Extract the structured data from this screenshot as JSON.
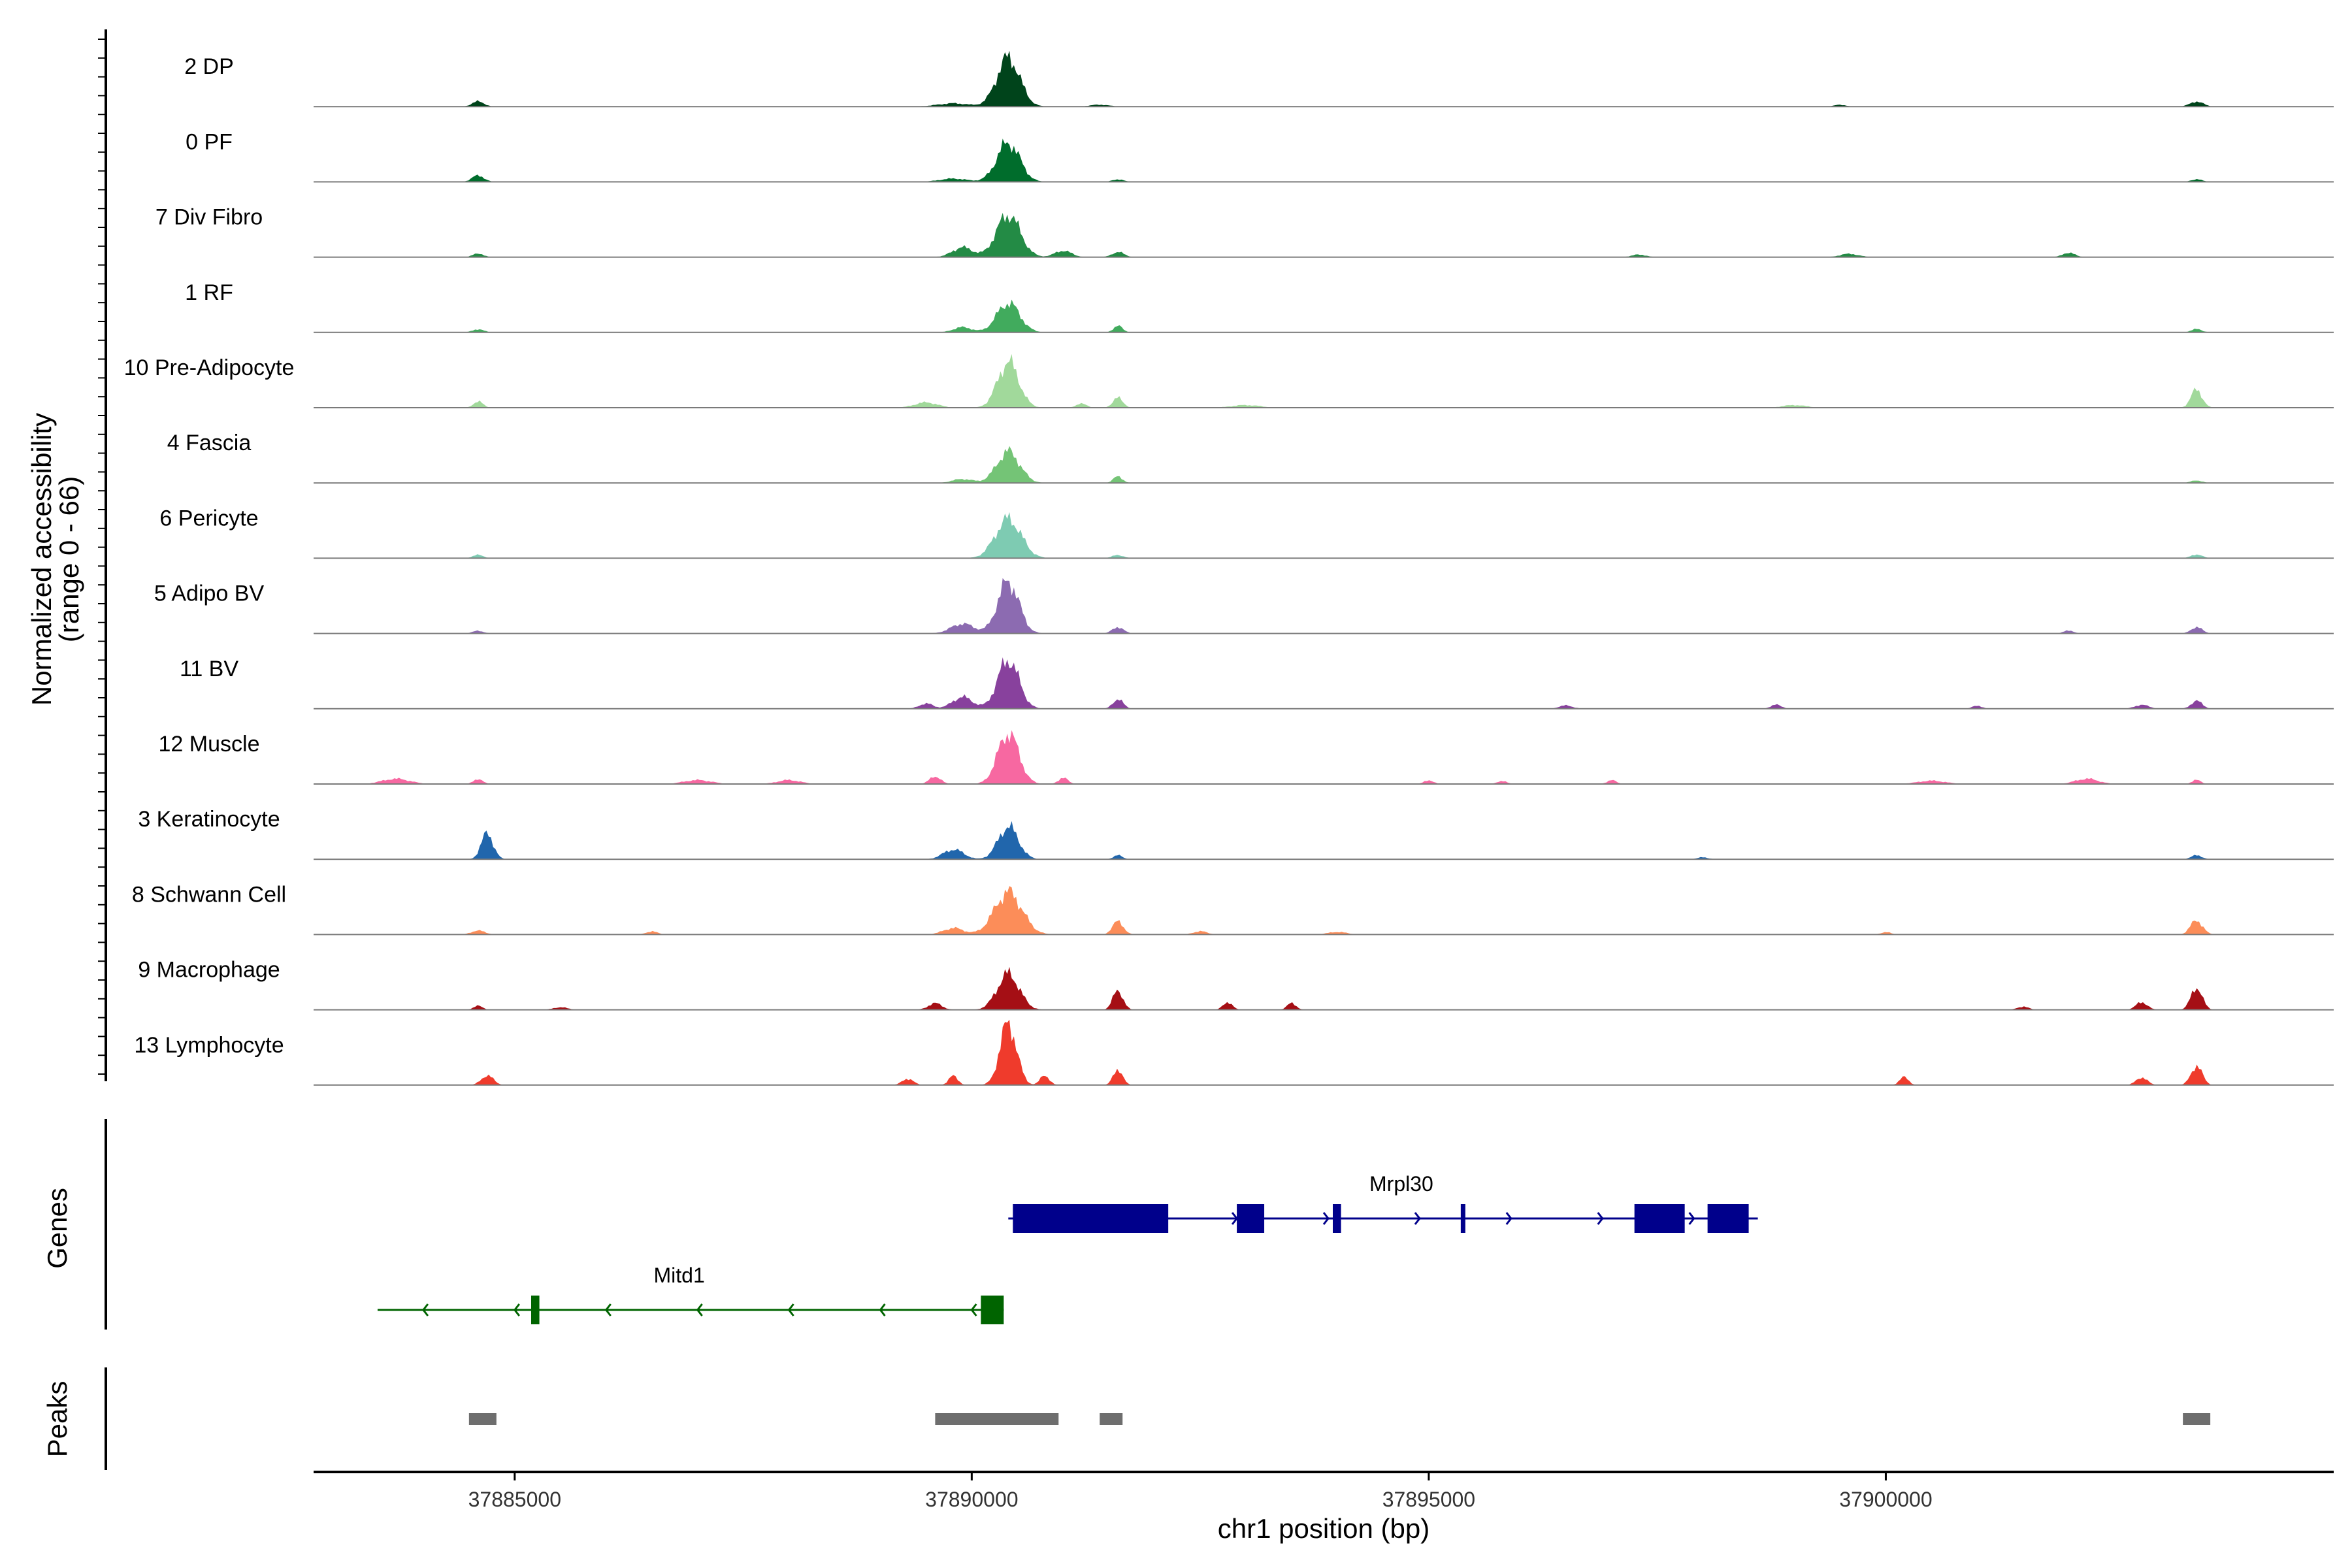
{
  "chart_data": {
    "type": "area",
    "x_axis": {
      "label": "chr1 position (bp)",
      "range": [
        37882800,
        37904900
      ],
      "ticks": [
        {
          "value": 37885000,
          "label": "37885000"
        },
        {
          "value": 37890000,
          "label": "37890000"
        },
        {
          "value": 37895000,
          "label": "37895000"
        },
        {
          "value": 37900000,
          "label": "37900000"
        }
      ]
    },
    "y_axis": {
      "label_line1": "Normalized accessibility",
      "label_line2": "(range 0 - 66)",
      "range": [
        0,
        66
      ]
    },
    "genes_label": "Genes",
    "peaks_label": "Peaks",
    "tracks": [
      {
        "name": "2 DP",
        "color": "#00441b",
        "peaks": [
          [
            37890400,
            0.75,
            250
          ],
          [
            37884600,
            0.08,
            130
          ],
          [
            37903400,
            0.08,
            140
          ],
          [
            37889800,
            0.05,
            350
          ],
          [
            37891400,
            0.03,
            200
          ],
          [
            37899500,
            0.03,
            120
          ]
        ]
      },
      {
        "name": "0 PF",
        "color": "#006d2c",
        "peaks": [
          [
            37890400,
            0.6,
            250
          ],
          [
            37884600,
            0.1,
            130
          ],
          [
            37889800,
            0.05,
            300
          ],
          [
            37891600,
            0.04,
            120
          ],
          [
            37903400,
            0.04,
            120
          ]
        ]
      },
      {
        "name": "7 Div Fibro",
        "color": "#238b45",
        "peaks": [
          [
            37890400,
            0.65,
            260
          ],
          [
            37889900,
            0.15,
            220
          ],
          [
            37891000,
            0.1,
            180
          ],
          [
            37891600,
            0.08,
            130
          ],
          [
            37884600,
            0.06,
            110
          ],
          [
            37899600,
            0.05,
            200
          ],
          [
            37897300,
            0.04,
            150
          ],
          [
            37902000,
            0.07,
            130
          ]
        ]
      },
      {
        "name": "1 RF",
        "color": "#41ab5d",
        "peaks": [
          [
            37890400,
            0.45,
            250
          ],
          [
            37891600,
            0.1,
            100
          ],
          [
            37884600,
            0.05,
            120
          ],
          [
            37903400,
            0.05,
            120
          ],
          [
            37889900,
            0.08,
            200
          ]
        ]
      },
      {
        "name": "10 Pre-Adipocyte",
        "color": "#a1d99b",
        "peaks": [
          [
            37890400,
            0.7,
            230
          ],
          [
            37891600,
            0.15,
            110
          ],
          [
            37903400,
            0.28,
            120
          ],
          [
            37884600,
            0.1,
            100
          ],
          [
            37889500,
            0.08,
            250
          ],
          [
            37891200,
            0.06,
            120
          ],
          [
            37893000,
            0.04,
            300
          ],
          [
            37899000,
            0.04,
            250
          ]
        ]
      },
      {
        "name": "4 Fascia",
        "color": "#74c476",
        "peaks": [
          [
            37890400,
            0.48,
            250
          ],
          [
            37891600,
            0.1,
            100
          ],
          [
            37889900,
            0.06,
            220
          ],
          [
            37903400,
            0.04,
            120
          ]
        ]
      },
      {
        "name": "6 Pericyte",
        "color": "#7ecbb2",
        "peaks": [
          [
            37890400,
            0.6,
            280
          ],
          [
            37884600,
            0.05,
            120
          ],
          [
            37903400,
            0.06,
            120
          ],
          [
            37891600,
            0.05,
            120
          ]
        ]
      },
      {
        "name": "5 Adipo BV",
        "color": "#8c6bb1",
        "peaks": [
          [
            37890400,
            0.8,
            230
          ],
          [
            37889900,
            0.15,
            250
          ],
          [
            37891600,
            0.1,
            120
          ],
          [
            37903400,
            0.1,
            120
          ],
          [
            37884600,
            0.04,
            120
          ],
          [
            37902000,
            0.05,
            100
          ]
        ]
      },
      {
        "name": "11 BV",
        "color": "#88419d",
        "peaks": [
          [
            37890400,
            0.75,
            230
          ],
          [
            37889900,
            0.18,
            220
          ],
          [
            37891600,
            0.15,
            110
          ],
          [
            37903400,
            0.12,
            120
          ],
          [
            37889500,
            0.08,
            150
          ],
          [
            37896500,
            0.05,
            150
          ],
          [
            37898800,
            0.06,
            120
          ],
          [
            37901000,
            0.05,
            100
          ],
          [
            37902800,
            0.06,
            150
          ]
        ]
      },
      {
        "name": "12 Muscle",
        "color": "#f768a1",
        "peaks": [
          [
            37890400,
            0.78,
            230
          ],
          [
            37889600,
            0.12,
            120
          ],
          [
            37883700,
            0.08,
            300
          ],
          [
            37884600,
            0.08,
            100
          ],
          [
            37887000,
            0.06,
            300
          ],
          [
            37888000,
            0.06,
            250
          ],
          [
            37891000,
            0.1,
            100
          ],
          [
            37895000,
            0.06,
            100
          ],
          [
            37895800,
            0.05,
            100
          ],
          [
            37897000,
            0.06,
            100
          ],
          [
            37900500,
            0.05,
            300
          ],
          [
            37902200,
            0.08,
            250
          ],
          [
            37903400,
            0.06,
            100
          ]
        ]
      },
      {
        "name": "3 Keratinocyte",
        "color": "#2166ac",
        "peaks": [
          [
            37890400,
            0.5,
            220
          ],
          [
            37884700,
            0.4,
            130
          ],
          [
            37889800,
            0.15,
            220
          ],
          [
            37891600,
            0.06,
            100
          ],
          [
            37903400,
            0.06,
            120
          ],
          [
            37898000,
            0.03,
            120
          ]
        ]
      },
      {
        "name": "8 Schwann Cell",
        "color": "#fc8d59",
        "peaks": [
          [
            37890400,
            0.65,
            300
          ],
          [
            37891600,
            0.2,
            120
          ],
          [
            37889800,
            0.1,
            220
          ],
          [
            37903400,
            0.22,
            130
          ],
          [
            37884600,
            0.06,
            150
          ],
          [
            37886500,
            0.05,
            120
          ],
          [
            37892500,
            0.05,
            150
          ],
          [
            37894000,
            0.04,
            200
          ],
          [
            37900000,
            0.04,
            100
          ]
        ]
      },
      {
        "name": "9 Macrophage",
        "color": "#a50f15",
        "peaks": [
          [
            37890400,
            0.55,
            240
          ],
          [
            37891600,
            0.3,
            110
          ],
          [
            37903400,
            0.35,
            120
          ],
          [
            37889600,
            0.1,
            150
          ],
          [
            37892800,
            0.12,
            100
          ],
          [
            37893500,
            0.1,
            100
          ],
          [
            37902800,
            0.12,
            120
          ],
          [
            37884600,
            0.06,
            100
          ],
          [
            37885500,
            0.04,
            150
          ],
          [
            37901500,
            0.05,
            120
          ]
        ]
      },
      {
        "name": "13 Lymphocyte",
        "color": "#ef3b2c",
        "peaks": [
          [
            37890400,
            0.95,
            180
          ],
          [
            37891600,
            0.25,
            100
          ],
          [
            37903400,
            0.3,
            120
          ],
          [
            37884700,
            0.15,
            130
          ],
          [
            37889300,
            0.1,
            120
          ],
          [
            37889800,
            0.14,
            100
          ],
          [
            37890800,
            0.15,
            100
          ],
          [
            37902800,
            0.12,
            120
          ],
          [
            37900200,
            0.12,
            100
          ]
        ]
      }
    ],
    "genes": [
      {
        "name": "Mrpl30",
        "strand": "+",
        "color": "#00008b",
        "row": 0,
        "start": 37890400,
        "end": 37898600,
        "exons": [
          [
            37890450,
            37892150
          ],
          [
            37892900,
            37893200
          ],
          [
            37893950,
            37894040
          ],
          [
            37895350,
            37895400
          ],
          [
            37897250,
            37897800
          ],
          [
            37898050,
            37898500
          ]
        ],
        "label_x": 37894700
      },
      {
        "name": "Mitd1",
        "strand": "-",
        "color": "#006400",
        "row": 1,
        "start": 37883500,
        "end": 37890350,
        "exons": [
          [
            37885180,
            37885270
          ],
          [
            37890100,
            37890350
          ]
        ],
        "label_x": 37886800
      }
    ],
    "peak_regions": [
      [
        37884500,
        37884800
      ],
      [
        37889600,
        37890950
      ],
      [
        37891400,
        37891650
      ],
      [
        37903250,
        37903550
      ]
    ]
  }
}
